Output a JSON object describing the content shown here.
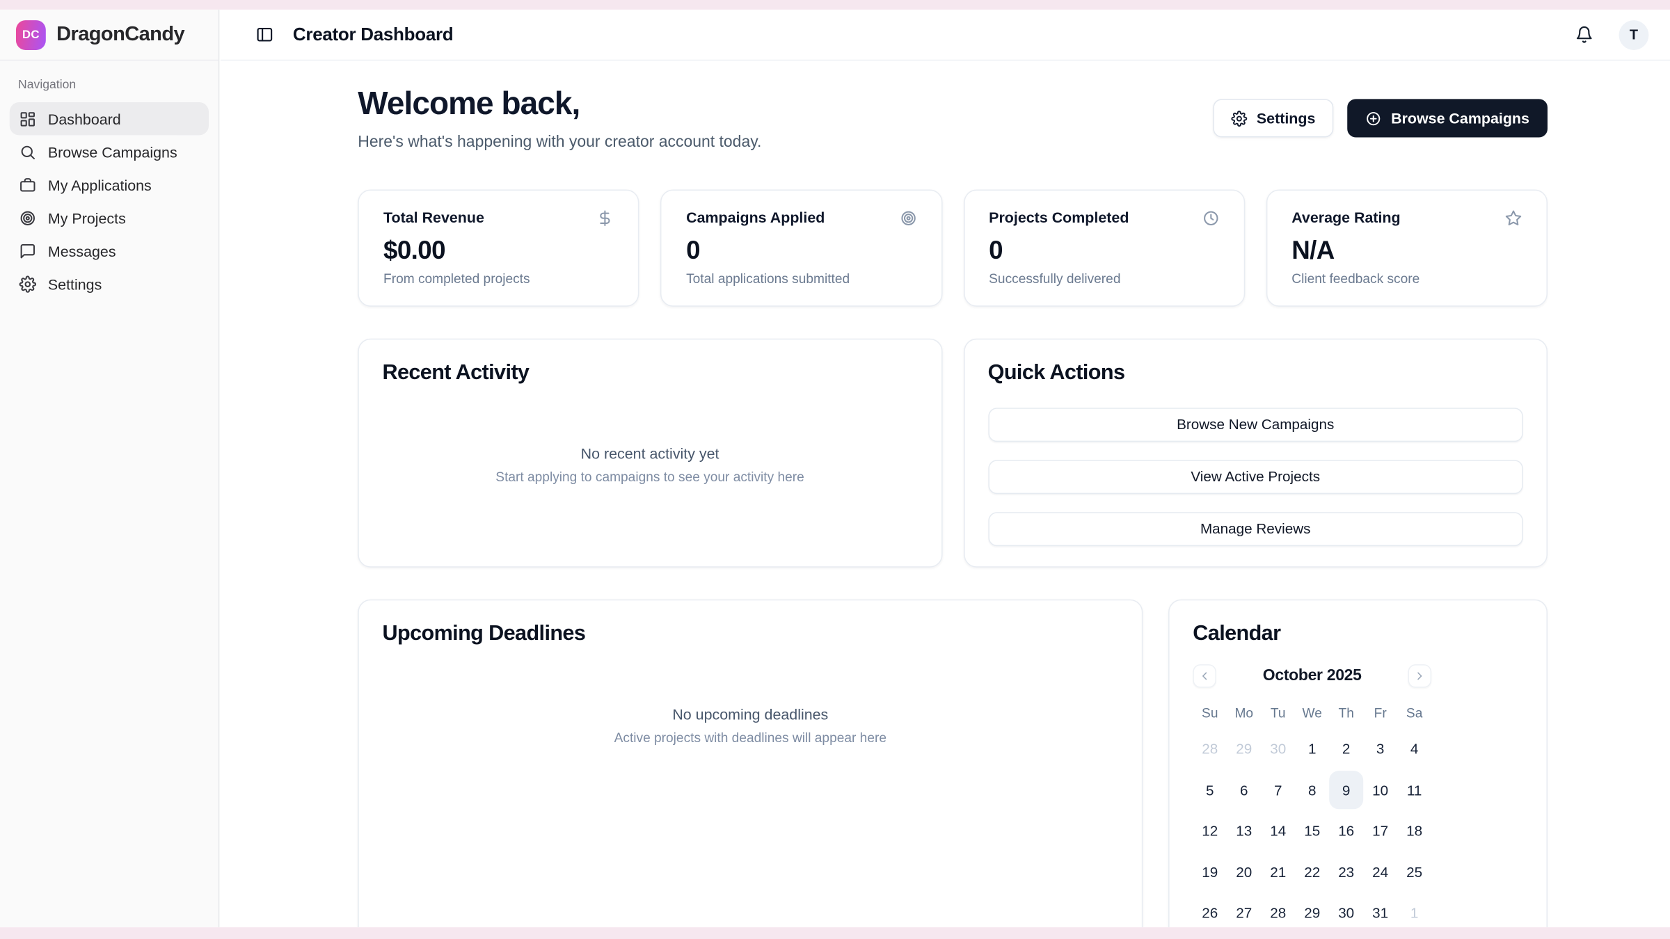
{
  "theme": {
    "frame_pink": "#f6e7ef",
    "brand_start": "#ec4899",
    "brand_end": "#a855f7",
    "primary": "#101828"
  },
  "sidebar": {
    "brand": {
      "initials": "DC",
      "name": "DragonCandy"
    },
    "section_label": "Navigation",
    "items": [
      {
        "label": "Dashboard",
        "icon": "layout-dashboard",
        "active": true
      },
      {
        "label": "Browse Campaigns",
        "icon": "search",
        "active": false
      },
      {
        "label": "My Applications",
        "icon": "briefcase",
        "active": false
      },
      {
        "label": "My Projects",
        "icon": "target",
        "active": false
      },
      {
        "label": "Messages",
        "icon": "message-square",
        "active": false
      },
      {
        "label": "Settings",
        "icon": "gear",
        "active": false
      }
    ]
  },
  "header": {
    "title": "Creator Dashboard",
    "toggle_icon": "panel-left",
    "notifications_icon": "bell",
    "avatar_initial": "T"
  },
  "welcome": {
    "heading": "Welcome back,",
    "subheading": "Here's what's happening with your creator account today.",
    "buttons": [
      {
        "label": "Settings",
        "icon": "gear",
        "variant": "outline"
      },
      {
        "label": "Browse Campaigns",
        "icon": "plus-circle",
        "variant": "primary"
      }
    ]
  },
  "stats": [
    {
      "title": "Total Revenue",
      "value": "$0.00",
      "caption": "From completed projects",
      "icon": "dollar-sign"
    },
    {
      "title": "Campaigns Applied",
      "value": "0",
      "caption": "Total applications submitted",
      "icon": "target"
    },
    {
      "title": "Projects Completed",
      "value": "0",
      "caption": "Successfully delivered",
      "icon": "clock"
    },
    {
      "title": "Average Rating",
      "value": "N/A",
      "caption": "Client feedback score",
      "icon": "star"
    }
  ],
  "recent_activity": {
    "title": "Recent Activity",
    "empty_title": "No recent activity yet",
    "empty_subtitle": "Start applying to campaigns to see your activity here"
  },
  "quick_actions": {
    "title": "Quick Actions",
    "actions": [
      "Browse New Campaigns",
      "View Active Projects",
      "Manage Reviews"
    ]
  },
  "deadlines": {
    "title": "Upcoming Deadlines",
    "empty_title": "No upcoming deadlines",
    "empty_subtitle": "Active projects with deadlines will appear here"
  },
  "calendar": {
    "title": "Calendar",
    "month_label": "October 2025",
    "prev_icon": "chevron-left",
    "next_icon": "chevron-right",
    "weekdays": [
      "Su",
      "Mo",
      "Tu",
      "We",
      "Th",
      "Fr",
      "Sa"
    ],
    "weeks": [
      [
        {
          "day": 28,
          "muted": true
        },
        {
          "day": 29,
          "muted": true
        },
        {
          "day": 30,
          "muted": true
        },
        {
          "day": 1
        },
        {
          "day": 2
        },
        {
          "day": 3
        },
        {
          "day": 4
        }
      ],
      [
        {
          "day": 5
        },
        {
          "day": 6
        },
        {
          "day": 7
        },
        {
          "day": 8
        },
        {
          "day": 9,
          "today": true
        },
        {
          "day": 10
        },
        {
          "day": 11
        }
      ],
      [
        {
          "day": 12
        },
        {
          "day": 13
        },
        {
          "day": 14
        },
        {
          "day": 15
        },
        {
          "day": 16
        },
        {
          "day": 17
        },
        {
          "day": 18
        }
      ],
      [
        {
          "day": 19
        },
        {
          "day": 20
        },
        {
          "day": 21
        },
        {
          "day": 22
        },
        {
          "day": 23
        },
        {
          "day": 24
        },
        {
          "day": 25
        }
      ],
      [
        {
          "day": 26
        },
        {
          "day": 27
        },
        {
          "day": 28
        },
        {
          "day": 29
        },
        {
          "day": 30
        },
        {
          "day": 31
        },
        {
          "day": 1,
          "muted": true
        }
      ]
    ]
  }
}
